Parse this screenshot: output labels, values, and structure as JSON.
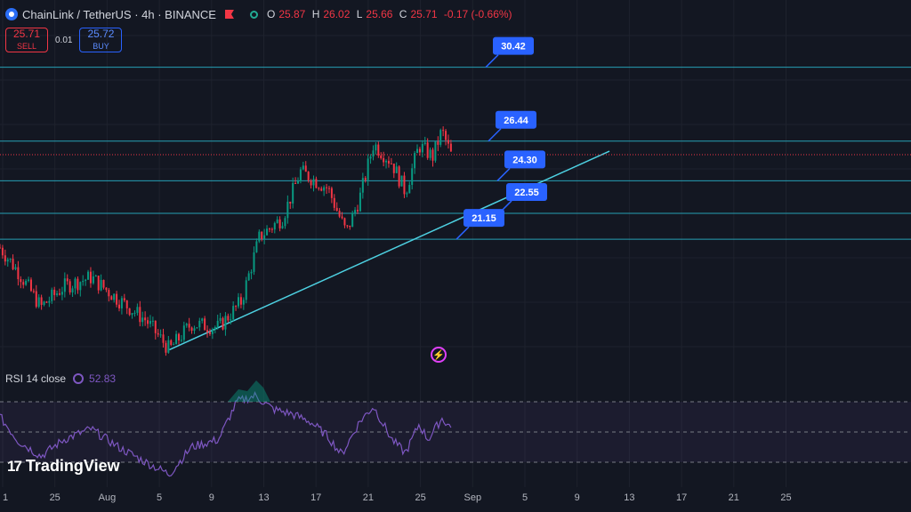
{
  "header": {
    "symbol": "ChainLink / TetherUS · 4h · BINANCE",
    "o_label": "O",
    "o": "25.87",
    "h_label": "H",
    "h": "26.02",
    "l_label": "L",
    "l": "25.66",
    "c_label": "C",
    "c": "25.71",
    "change": "-0.17 (-0.66%)",
    "icons": [
      "chainlink-logo-icon",
      "flag-icon",
      "market-status-icon"
    ]
  },
  "trade": {
    "sell_price": "25.71",
    "sell_label": "SELL",
    "spread": "0.01",
    "buy_price": "25.72",
    "buy_label": "BUY"
  },
  "rsi": {
    "label": "RSI 14 close",
    "value": "52.83",
    "upper": 70,
    "middle": 50,
    "lower": 30
  },
  "watermark": "TradingView",
  "colors": {
    "up": "#089981",
    "down": "#f23645",
    "level": "#26a0b4",
    "trend": "#4dd0e1",
    "rsi": "#7e57c2",
    "label_bg": "#2962ff"
  },
  "chart_data": {
    "type": "candlestick",
    "x_ticks": [
      "1",
      "25",
      "Aug",
      "5",
      "9",
      "13",
      "17",
      "21",
      "25",
      "Sep",
      "5",
      "9",
      "13",
      "17",
      "21",
      "25"
    ],
    "ylim": [
      14.5,
      32.8
    ],
    "current_price": 25.71,
    "levels": [
      30.42,
      26.44,
      24.3,
      22.55,
      21.15
    ],
    "trendline": [
      {
        "x": 0.186,
        "y": 15.2
      },
      {
        "x": 0.669,
        "y": 25.9
      }
    ],
    "close_path": [
      [
        0,
        20.7
      ],
      [
        0.02,
        19.4
      ],
      [
        0.045,
        17.5
      ],
      [
        0.07,
        18.6
      ],
      [
        0.1,
        19.1
      ],
      [
        0.13,
        17.9
      ],
      [
        0.16,
        16.8
      ],
      [
        0.186,
        15.2
      ],
      [
        0.21,
        16.6
      ],
      [
        0.24,
        16.4
      ],
      [
        0.265,
        17.8
      ],
      [
        0.285,
        21.3
      ],
      [
        0.31,
        22.3
      ],
      [
        0.33,
        24.8
      ],
      [
        0.36,
        23.9
      ],
      [
        0.38,
        21.5
      ],
      [
        0.395,
        23.4
      ],
      [
        0.41,
        26.3
      ],
      [
        0.43,
        25.3
      ],
      [
        0.445,
        23.7
      ],
      [
        0.46,
        26.2
      ],
      [
        0.475,
        25.6
      ],
      [
        0.485,
        27.0
      ],
      [
        0.495,
        25.71
      ]
    ],
    "rsi_values": [
      [
        0,
        60
      ],
      [
        0.02,
        44
      ],
      [
        0.045,
        34
      ],
      [
        0.07,
        45
      ],
      [
        0.1,
        52
      ],
      [
        0.13,
        40
      ],
      [
        0.16,
        30
      ],
      [
        0.186,
        22
      ],
      [
        0.21,
        40
      ],
      [
        0.24,
        45
      ],
      [
        0.26,
        70
      ],
      [
        0.28,
        74
      ],
      [
        0.3,
        65
      ],
      [
        0.32,
        62
      ],
      [
        0.34,
        57
      ],
      [
        0.36,
        47
      ],
      [
        0.375,
        35
      ],
      [
        0.395,
        57
      ],
      [
        0.41,
        67
      ],
      [
        0.43,
        45
      ],
      [
        0.445,
        36
      ],
      [
        0.46,
        55
      ],
      [
        0.47,
        45
      ],
      [
        0.485,
        59
      ],
      [
        0.495,
        52.83
      ]
    ]
  }
}
